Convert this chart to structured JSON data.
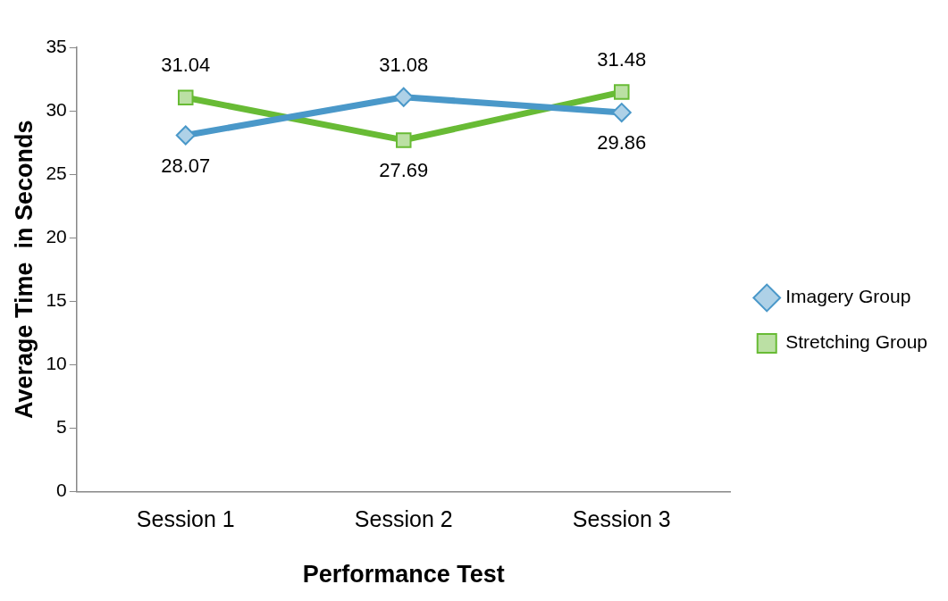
{
  "chart_data": {
    "type": "line",
    "xlabel": "Performance Test",
    "ylabel": "Average Time  in Seconds",
    "categories": [
      "Session 1",
      "Session 2",
      "Session 3"
    ],
    "series": [
      {
        "name": "Imagery Group",
        "color": "#4a98c9",
        "values": [
          28.07,
          31.08,
          29.86
        ],
        "marker": "diamond"
      },
      {
        "name": "Stretching Group",
        "color": "#68bb35",
        "values": [
          31.04,
          27.69,
          31.48
        ],
        "marker": "square"
      }
    ],
    "ylim": [
      0,
      35
    ],
    "yticks": [
      0,
      5,
      10,
      15,
      20,
      25,
      30,
      35
    ],
    "grid": false,
    "legend": "right",
    "data_labels": true,
    "line_style": "solid"
  }
}
